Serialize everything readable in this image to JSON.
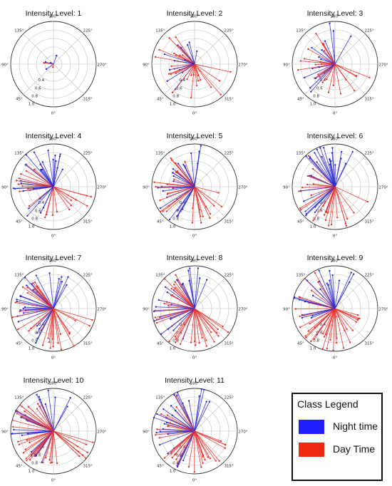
{
  "chart_data": [
    {
      "type": "polar-vector",
      "title": "Intensity Level: 1",
      "seed": 1,
      "n": 6,
      "len": [
        0.05,
        0.25
      ],
      "angle_ticks": [
        "0°",
        "45°",
        "90°",
        "135°",
        "180°",
        "225°",
        "270°",
        "315°"
      ],
      "radius_ticks": [
        "0.4",
        "0.6",
        "0.8",
        "1.0"
      ],
      "rmax": 1.0
    },
    {
      "type": "polar-vector",
      "title": "Intensity Level: 2",
      "seed": 2,
      "n": 40,
      "len": [
        0.2,
        0.95
      ],
      "angle_ticks": [
        "0°",
        "45°",
        "90°",
        "135°",
        "180°",
        "225°",
        "270°",
        "315°"
      ],
      "radius_ticks": [
        "0.4",
        "0.6",
        "0.8",
        "1.0"
      ],
      "rmax": 1.0
    },
    {
      "type": "polar-vector",
      "title": "Intensity Level: 3",
      "seed": 3,
      "n": 40,
      "len": [
        0.3,
        0.97
      ],
      "angle_ticks": [
        "0°",
        "45°",
        "90°",
        "135°",
        "180°",
        "225°",
        "270°",
        "315°"
      ],
      "radius_ticks": [
        "0.4",
        "0.6",
        "0.8",
        "1.0"
      ],
      "rmax": 1.0
    },
    {
      "type": "polar-vector",
      "title": "Intensity Level: 4",
      "seed": 4,
      "n": 50,
      "len": [
        0.4,
        1.0
      ],
      "angle_ticks": [
        "0°",
        "45°",
        "90°",
        "135°",
        "180°",
        "225°",
        "270°",
        "315°"
      ],
      "radius_ticks": [
        "0.4",
        "0.6",
        "0.8",
        "1.0"
      ],
      "rmax": 1.0
    },
    {
      "type": "polar-vector",
      "title": "Intensity Level: 5",
      "seed": 5,
      "n": 55,
      "len": [
        0.5,
        1.0
      ],
      "angle_ticks": [
        "0°",
        "45°",
        "90°",
        "135°",
        "180°",
        "225°",
        "270°",
        "315°"
      ],
      "radius_ticks": [
        "0.4",
        "0.6",
        "0.8",
        "1.0"
      ],
      "rmax": 1.0
    },
    {
      "type": "polar-vector",
      "title": "Intensity Level: 6",
      "seed": 6,
      "n": 55,
      "len": [
        0.5,
        1.0
      ],
      "angle_ticks": [
        "0°",
        "45°",
        "90°",
        "135°",
        "180°",
        "225°",
        "270°",
        "315°"
      ],
      "radius_ticks": [
        "0.4",
        "0.6",
        "0.8",
        "1.0"
      ],
      "rmax": 1.0
    },
    {
      "type": "polar-vector",
      "title": "Intensity Level: 7",
      "seed": 7,
      "n": 60,
      "len": [
        0.55,
        1.0
      ],
      "angle_ticks": [
        "0°",
        "45°",
        "90°",
        "135°",
        "180°",
        "225°",
        "270°",
        "315°"
      ],
      "radius_ticks": [
        "0.4",
        "0.6",
        "0.8",
        "1.0"
      ],
      "rmax": 1.0
    },
    {
      "type": "polar-vector",
      "title": "Intensity Level: 8",
      "seed": 8,
      "n": 60,
      "len": [
        0.55,
        1.0
      ],
      "angle_ticks": [
        "0°",
        "45°",
        "90°",
        "135°",
        "180°",
        "225°",
        "270°",
        "315°"
      ],
      "radius_ticks": [
        "0.4",
        "0.6",
        "0.8",
        "1.0"
      ],
      "rmax": 1.0
    },
    {
      "type": "polar-vector",
      "title": "Intensity Level: 9",
      "seed": 9,
      "n": 60,
      "len": [
        0.55,
        1.0
      ],
      "angle_ticks": [
        "0°",
        "45°",
        "90°",
        "135°",
        "180°",
        "225°",
        "270°",
        "315°"
      ],
      "radius_ticks": [
        "0.4",
        "0.6",
        "0.8",
        "1.0"
      ],
      "rmax": 1.0
    },
    {
      "type": "polar-vector",
      "title": "Intensity Level: 10",
      "seed": 10,
      "n": 65,
      "len": [
        0.6,
        1.0
      ],
      "angle_ticks": [
        "0°",
        "45°",
        "90°",
        "135°",
        "180°",
        "225°",
        "270°",
        "315°"
      ],
      "radius_ticks": [
        "0.4",
        "0.6",
        "0.8",
        "1.0"
      ],
      "rmax": 1.0
    },
    {
      "type": "polar-vector",
      "title": "Intensity Level: 11",
      "seed": 11,
      "n": 65,
      "len": [
        0.6,
        1.0
      ],
      "angle_ticks": [
        "0°",
        "45°",
        "90°",
        "135°",
        "180°",
        "225°",
        "270°",
        "315°"
      ],
      "radius_ticks": [
        "0.4",
        "0.6",
        "0.8",
        "1.0"
      ],
      "rmax": 1.0
    }
  ],
  "legend": {
    "title": "Class Legend",
    "items": [
      {
        "label": "Night time",
        "color": "#1f1fff"
      },
      {
        "label": "Day Time",
        "color": "#ee2a10"
      }
    ]
  },
  "colors": {
    "night": "#2a2ad6",
    "day": "#e8332a",
    "grid": "#bfbfbf",
    "circle": "#333333"
  }
}
